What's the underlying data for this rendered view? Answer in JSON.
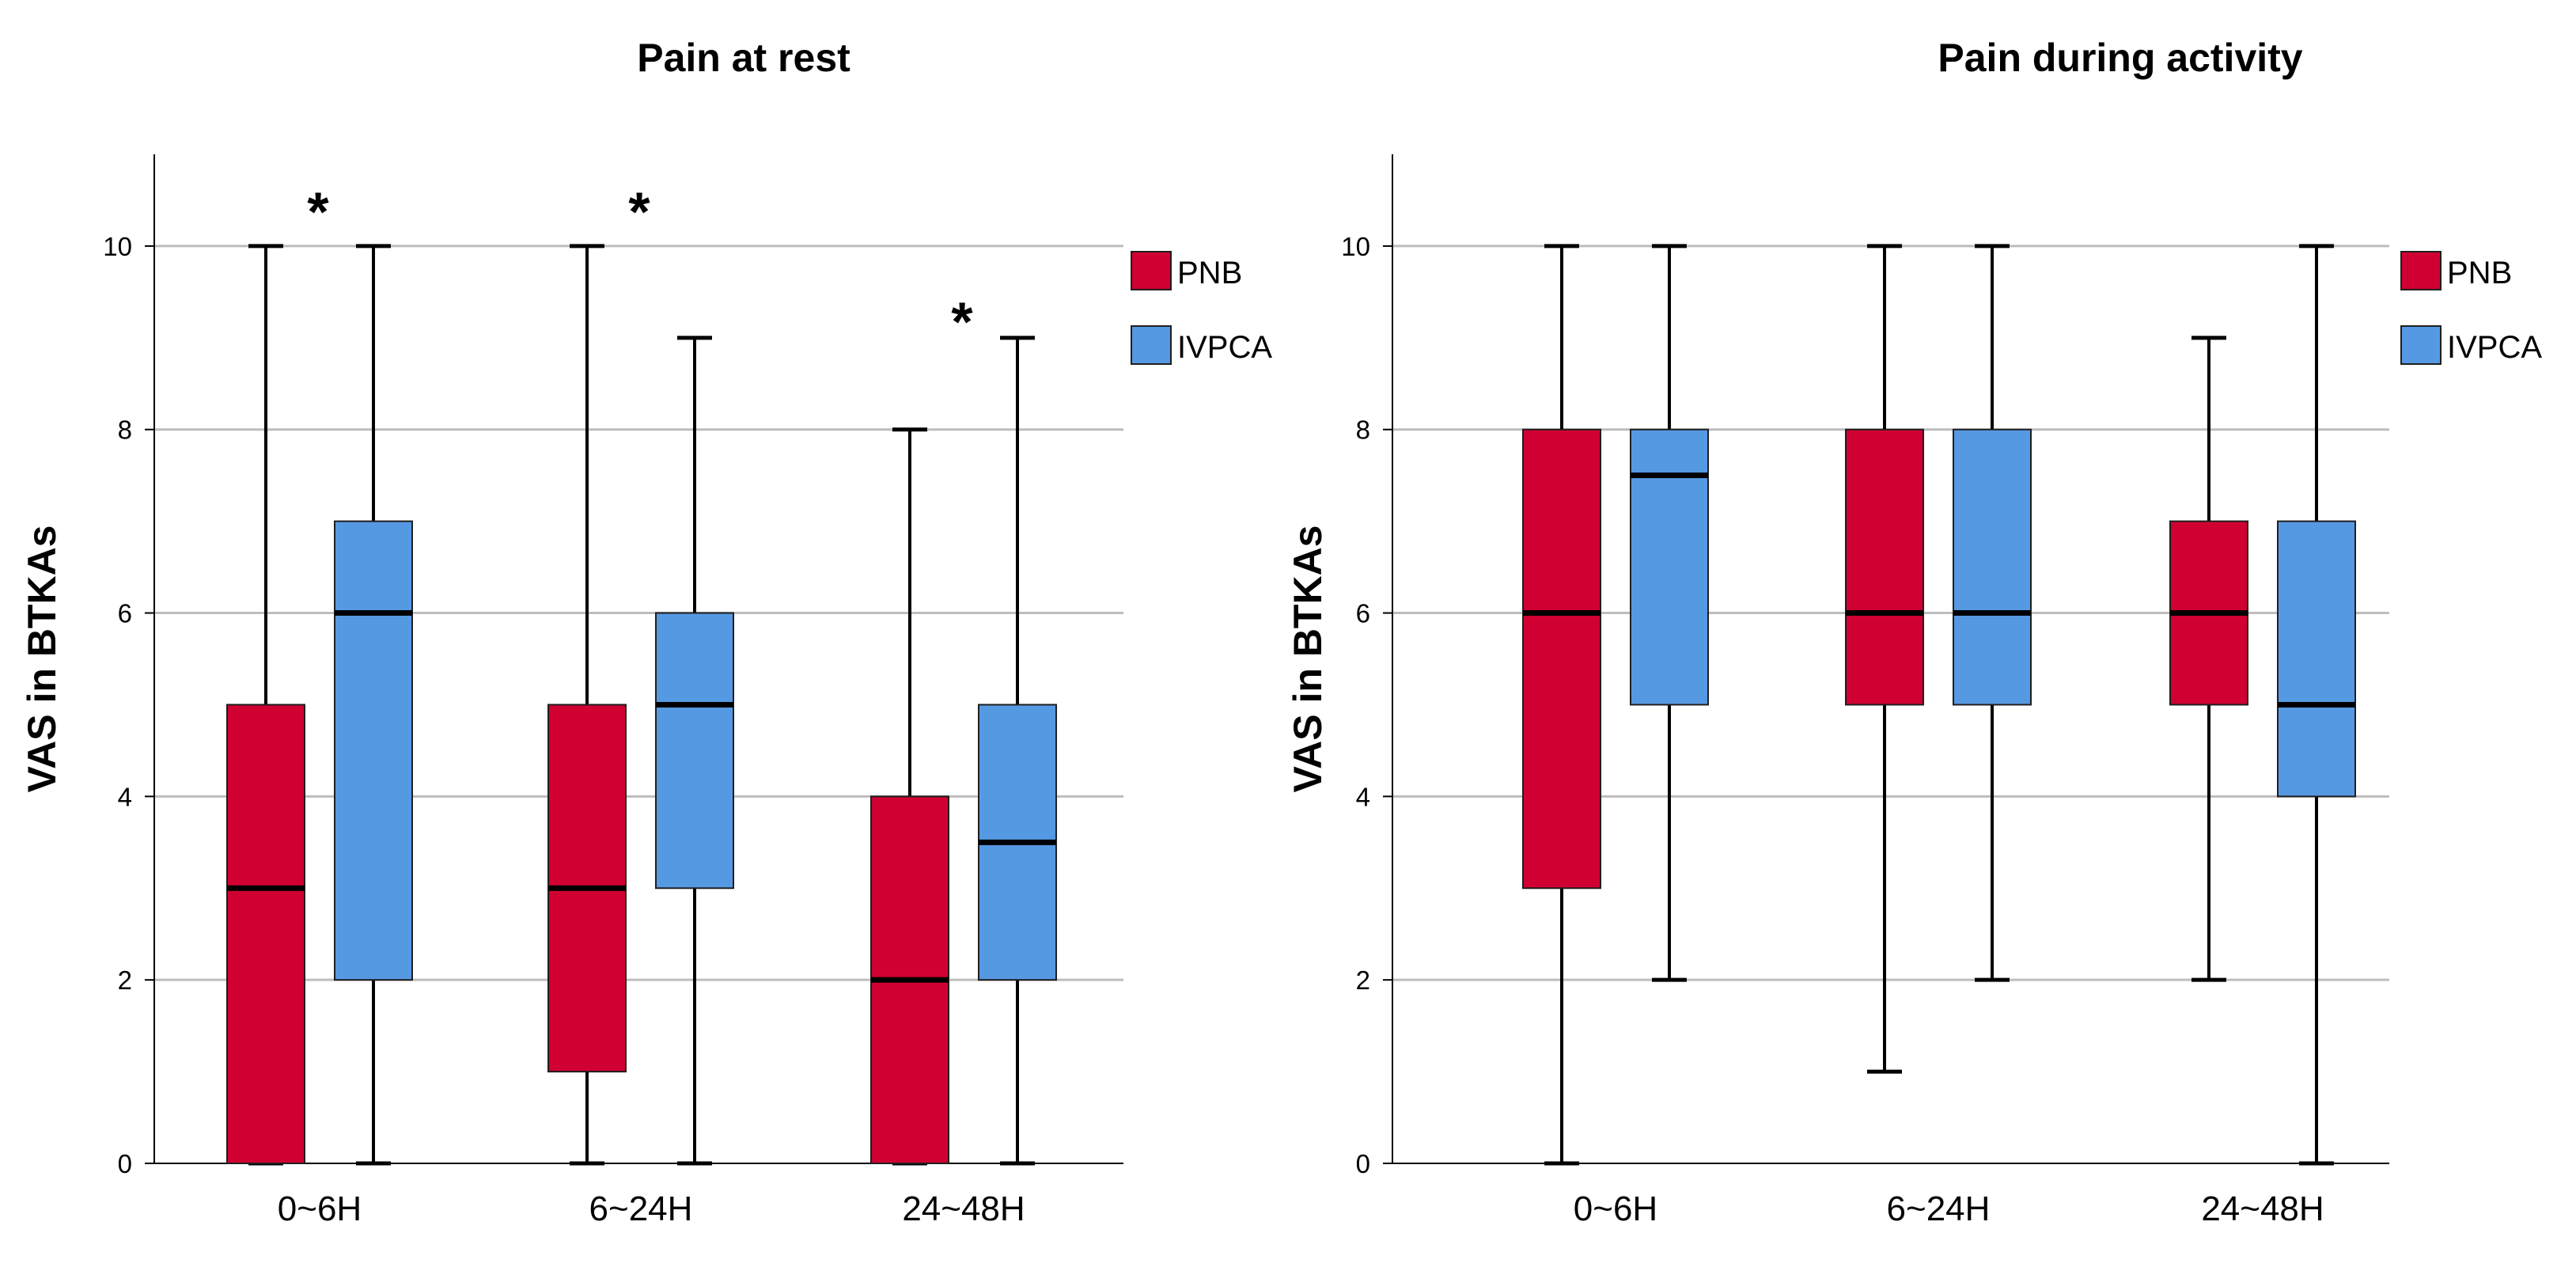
{
  "colors": {
    "PNB": "#d10032",
    "IVPCA": "#5699e3",
    "grid": "#bdbdbd",
    "axis": "#000000"
  },
  "chart_data": [
    {
      "type": "box",
      "title": "Pain at rest",
      "ylabel": "VAS in BTKAs",
      "xlabel": "",
      "ylim": [
        0,
        11
      ],
      "yticks": [
        0,
        2,
        4,
        6,
        8,
        10
      ],
      "ytick_labels": [
        "0",
        "2",
        "4",
        "6",
        "8",
        "10"
      ],
      "grid": true,
      "legend_position": "top-right",
      "categories": [
        "0~6H",
        "6~24H",
        "24~48H"
      ],
      "series": [
        {
          "name": "PNB",
          "color": "#d10032",
          "boxes": [
            {
              "min": 0,
              "q1": 0,
              "median": 3,
              "q3": 5,
              "max": 10
            },
            {
              "min": 0,
              "q1": 1,
              "median": 3,
              "q3": 5,
              "max": 10
            },
            {
              "min": 0,
              "q1": 0,
              "median": 2,
              "q3": 4,
              "max": 8
            }
          ]
        },
        {
          "name": "IVPCA",
          "color": "#5699e3",
          "boxes": [
            {
              "min": 0,
              "q1": 2,
              "median": 6,
              "q3": 7,
              "max": 10
            },
            {
              "min": 0,
              "q1": 3,
              "median": 5,
              "q3": 6,
              "max": 9
            },
            {
              "min": 0,
              "q1": 2,
              "median": 3.5,
              "q3": 5,
              "max": 9
            }
          ]
        }
      ],
      "annotations": [
        {
          "text": "*",
          "category": 0,
          "y": 10.6
        },
        {
          "text": "*",
          "category": 1,
          "y": 10.6
        },
        {
          "text": "*",
          "category": 2,
          "y": 9.4
        }
      ]
    },
    {
      "type": "box",
      "title": "Pain during activity",
      "ylabel": "VAS in BTKAs",
      "xlabel": "",
      "ylim": [
        0,
        11
      ],
      "yticks": [
        0,
        2,
        4,
        6,
        8,
        10
      ],
      "ytick_labels": [
        "0",
        "2",
        "4",
        "6",
        "8",
        "10"
      ],
      "grid": true,
      "legend_position": "top-right",
      "categories": [
        "0~6H",
        "6~24H",
        "24~48H"
      ],
      "series": [
        {
          "name": "PNB",
          "color": "#d10032",
          "boxes": [
            {
              "min": 0,
              "q1": 3,
              "median": 6,
              "q3": 8,
              "max": 10
            },
            {
              "min": 1,
              "q1": 5,
              "median": 6,
              "q3": 8,
              "max": 10
            },
            {
              "min": 2,
              "q1": 5,
              "median": 6,
              "q3": 7,
              "max": 9
            }
          ]
        },
        {
          "name": "IVPCA",
          "color": "#5699e3",
          "boxes": [
            {
              "min": 2,
              "q1": 5,
              "median": 7.5,
              "q3": 8,
              "max": 10
            },
            {
              "min": 2,
              "q1": 5,
              "median": 6,
              "q3": 8,
              "max": 10
            },
            {
              "min": 0,
              "q1": 4,
              "median": 5,
              "q3": 7,
              "max": 10
            }
          ]
        }
      ],
      "annotations": []
    }
  ]
}
